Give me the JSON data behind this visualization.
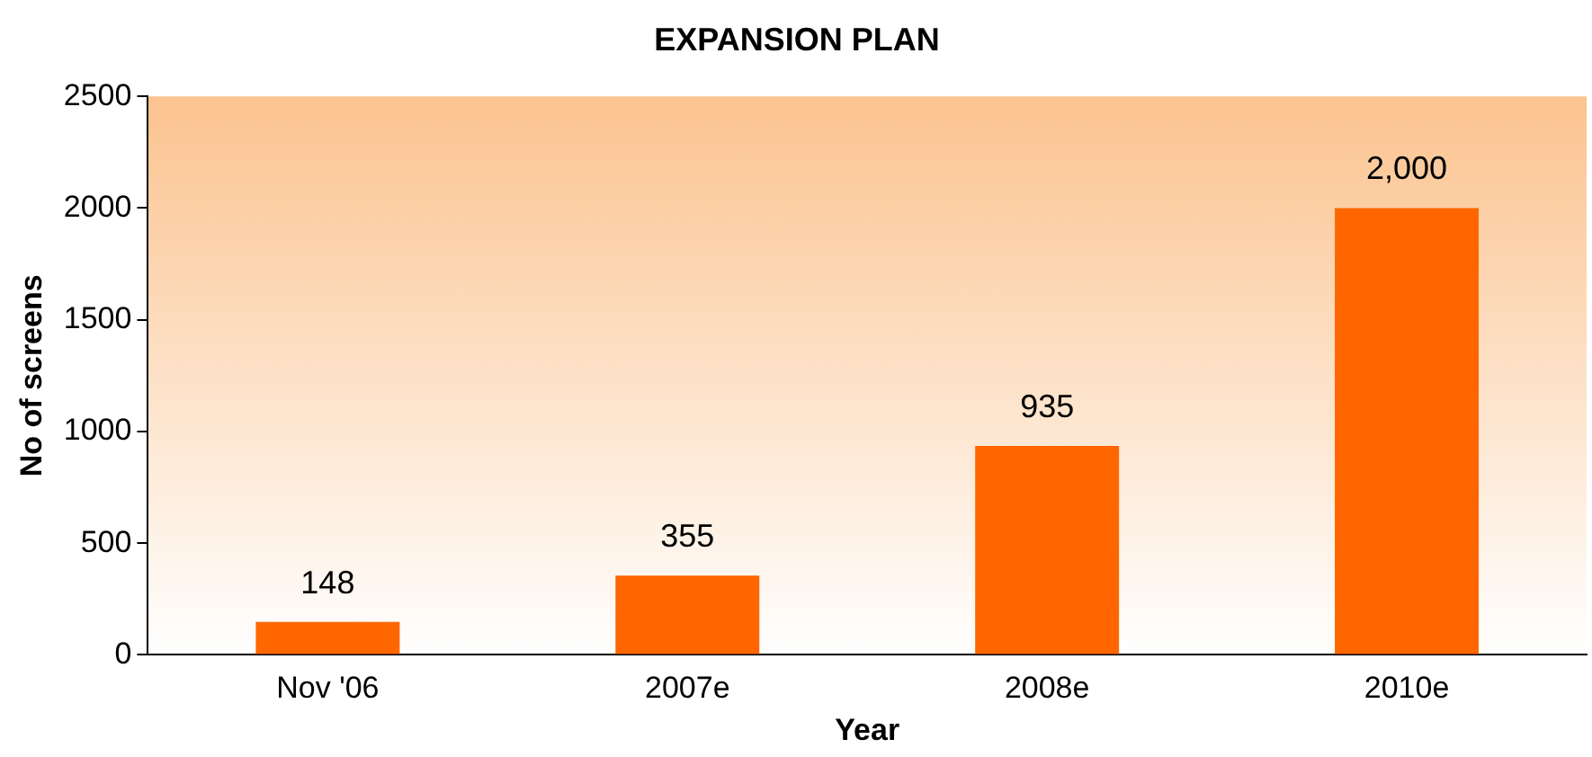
{
  "chart_data": {
    "type": "bar",
    "title": "EXPANSION PLAN",
    "xlabel": "Year",
    "ylabel": "No of screens",
    "categories": [
      "Nov '06",
      "2007e",
      "2008e",
      "2010e"
    ],
    "values": [
      148,
      355,
      935,
      2000
    ],
    "value_labels": [
      "148",
      "355",
      "935",
      "2,000"
    ],
    "color": "#ff6600",
    "ylim": [
      0,
      2500
    ],
    "yticks": [
      0,
      500,
      1000,
      1500,
      2000,
      2500
    ],
    "grid": false,
    "legend": false
  }
}
